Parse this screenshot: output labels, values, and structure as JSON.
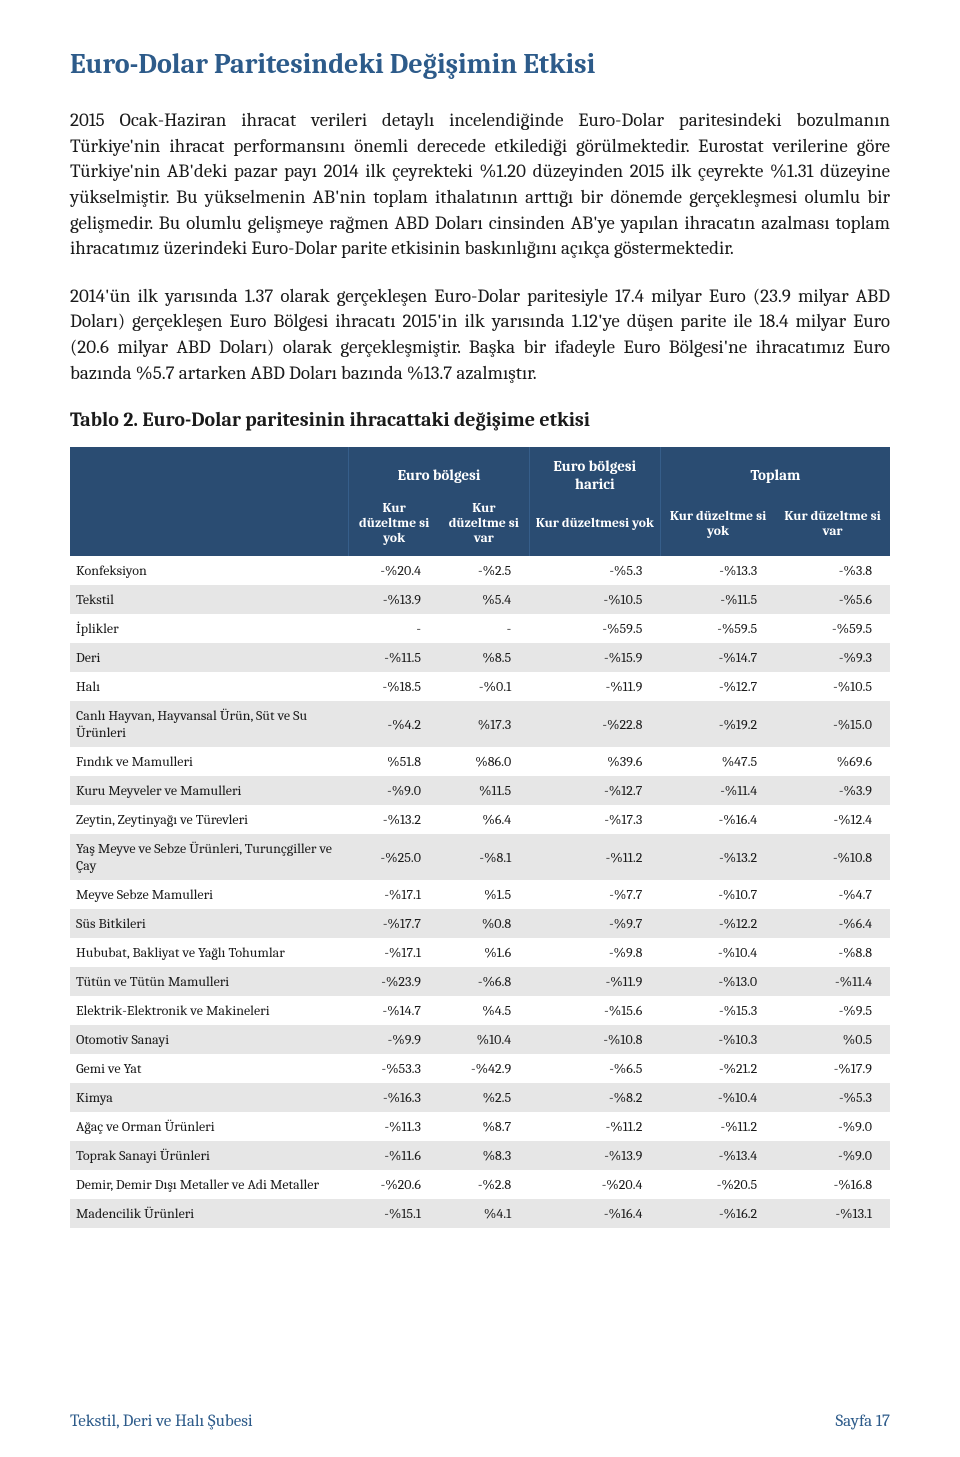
{
  "colors": {
    "heading": "#2d5b8a",
    "thead_bg": "#2a4c72",
    "row_even_bg": "#e6e6e6",
    "row_odd_bg": "#ffffff",
    "text": "#1a1a1a"
  },
  "title": "Euro-Dolar Paritesindeki Değişimin Etkisi",
  "paragraphs": [
    "2015 Ocak-Haziran ihracat verileri detaylı incelendiğinde Euro-Dolar paritesindeki bozulmanın Türkiye'nin ihracat performansını önemli derecede etkilediği görülmektedir. Eurostat verilerine göre Türkiye'nin AB'deki pazar payı 2014 ilk çeyrekteki %1.20 düzeyinden 2015 ilk çeyrekte %1.31 düzeyine yükselmiştir. Bu yükselmenin AB'nin toplam ithalatının arttığı bir dönemde gerçekleşmesi olumlu bir gelişmedir. Bu olumlu gelişmeye rağmen ABD Doları cinsinden AB'ye yapılan ihracatın azalması toplam ihracatımız üzerindeki Euro-Dolar parite etkisinin baskınlığını açıkça göstermektedir.",
    "2014'ün ilk yarısında 1.37 olarak gerçekleşen Euro-Dolar paritesiyle 17.4 milyar Euro (23.9 milyar ABD Doları) gerçekleşen Euro Bölgesi ihracatı 2015'in ilk yarısında 1.12'ye düşen parite ile 18.4 milyar Euro (20.6 milyar ABD Doları) olarak gerçekleşmiştir. Başka bir ifadeyle Euro Bölgesi'ne ihracatımız Euro bazında %5.7 artarken ABD Doları bazında %13.7 azalmıştır."
  ],
  "table_caption": "Tablo 2. Euro-Dolar paritesinin ihracattaki değişime etkisi",
  "table": {
    "group_headers": [
      "Euro bölgesi",
      "Euro bölgesi harici",
      "Toplam"
    ],
    "sub_headers": [
      "Kur düzeltme si yok",
      "Kur düzeltme si var",
      "Kur düzeltmesi yok",
      "Kur düzeltme si yok",
      "Kur düzeltme si var"
    ],
    "col_widths_pct": [
      34,
      11,
      11,
      16,
      14,
      14
    ],
    "rows": [
      {
        "name": "Konfeksiyon",
        "vals": [
          "-%20.4",
          "-%2.5",
          "-%5.3",
          "-%13.3",
          "-%3.8"
        ]
      },
      {
        "name": "Tekstil",
        "vals": [
          "-%13.9",
          "%5.4",
          "-%10.5",
          "-%11.5",
          "-%5.6"
        ]
      },
      {
        "name": "İplikler",
        "vals": [
          "-",
          "-",
          "-%59.5",
          "-%59.5",
          "-%59.5"
        ]
      },
      {
        "name": "Deri",
        "vals": [
          "-%11.5",
          "%8.5",
          "-%15.9",
          "-%14.7",
          "-%9.3"
        ]
      },
      {
        "name": "Halı",
        "vals": [
          "-%18.5",
          "-%0.1",
          "-%11.9",
          "-%12.7",
          "-%10.5"
        ]
      },
      {
        "name": "Canlı Hayvan, Hayvansal Ürün, Süt ve Su Ürünleri",
        "vals": [
          "-%4.2",
          "%17.3",
          "-%22.8",
          "-%19.2",
          "-%15.0"
        ]
      },
      {
        "name": "Fındık ve Mamulleri",
        "vals": [
          "%51.8",
          "%86.0",
          "%39.6",
          "%47.5",
          "%69.6"
        ]
      },
      {
        "name": "Kuru Meyveler ve Mamulleri",
        "vals": [
          "-%9.0",
          "%11.5",
          "-%12.7",
          "-%11.4",
          "-%3.9"
        ]
      },
      {
        "name": "Zeytin, Zeytinyağı ve Türevleri",
        "vals": [
          "-%13.2",
          "%6.4",
          "-%17.3",
          "-%16.4",
          "-%12.4"
        ]
      },
      {
        "name": "Yaş Meyve ve Sebze Ürünleri, Turunçgiller ve Çay",
        "vals": [
          "-%25.0",
          "-%8.1",
          "-%11.2",
          "-%13.2",
          "-%10.8"
        ]
      },
      {
        "name": "Meyve Sebze Mamulleri",
        "vals": [
          "-%17.1",
          "%1.5",
          "-%7.7",
          "-%10.7",
          "-%4.7"
        ]
      },
      {
        "name": "Süs Bitkileri",
        "vals": [
          "-%17.7",
          "%0.8",
          "-%9.7",
          "-%12.2",
          "-%6.4"
        ]
      },
      {
        "name": "Hububat, Bakliyat ve Yağlı Tohumlar",
        "vals": [
          "-%17.1",
          "%1.6",
          "-%9.8",
          "-%10.4",
          "-%8.8"
        ]
      },
      {
        "name": "Tütün ve Tütün Mamulleri",
        "vals": [
          "-%23.9",
          "-%6.8",
          "-%11.9",
          "-%13.0",
          "-%11.4"
        ]
      },
      {
        "name": "Elektrik-Elektronik ve Makineleri",
        "vals": [
          "-%14.7",
          "%4.5",
          "-%15.6",
          "-%15.3",
          "-%9.5"
        ]
      },
      {
        "name": "Otomotiv Sanayi",
        "vals": [
          "-%9.9",
          "%10.4",
          "-%10.8",
          "-%10.3",
          "%0.5"
        ]
      },
      {
        "name": "Gemi ve Yat",
        "vals": [
          "-%53.3",
          "-%42.9",
          "-%6.5",
          "-%21.2",
          "-%17.9"
        ]
      },
      {
        "name": "Kimya",
        "vals": [
          "-%16.3",
          "%2.5",
          "-%8.2",
          "-%10.4",
          "-%5.3"
        ]
      },
      {
        "name": "Ağaç ve Orman Ürünleri",
        "vals": [
          "-%11.3",
          "%8.7",
          "-%11.2",
          "-%11.2",
          "-%9.0"
        ]
      },
      {
        "name": "Toprak Sanayi Ürünleri",
        "vals": [
          "-%11.6",
          "%8.3",
          "-%13.9",
          "-%13.4",
          "-%9.0"
        ]
      },
      {
        "name": "Demir, Demir Dışı Metaller ve Adi Metaller",
        "vals": [
          "-%20.6",
          "-%2.8",
          "-%20.4",
          "-%20.5",
          "-%16.8"
        ]
      },
      {
        "name": "Madencilik Ürünleri",
        "vals": [
          "-%15.1",
          "%4.1",
          "-%16.4",
          "-%16.2",
          "-%13.1"
        ]
      }
    ]
  },
  "footer": {
    "left": "Tekstil, Deri ve Halı Şubesi",
    "right": "Sayfa 17"
  }
}
